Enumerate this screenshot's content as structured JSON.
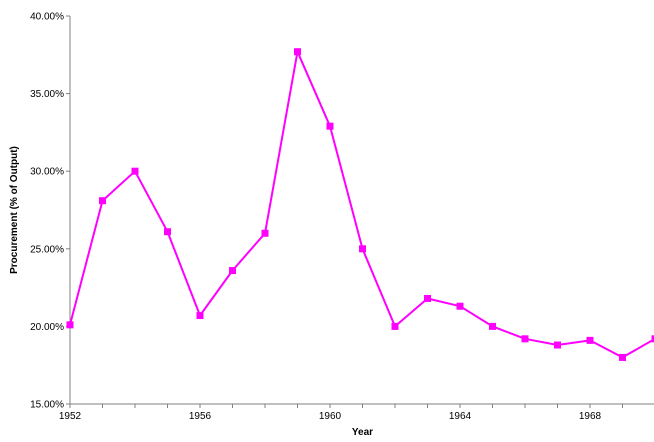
{
  "chart_data": {
    "type": "line",
    "xlabel": "Year",
    "ylabel": "Procurement (% of Output)",
    "xlim": [
      1952,
      1970
    ],
    "ylim": [
      15,
      40
    ],
    "x_ticks": [
      1952,
      1956,
      1960,
      1964,
      1968
    ],
    "x_tick_labels": [
      "1952",
      "1956",
      "1960",
      "1964",
      "1968"
    ],
    "y_ticks": [
      15,
      20,
      25,
      30,
      35,
      40
    ],
    "y_tick_labels": [
      "15.00%",
      "20.00%",
      "25.00%",
      "30.00%",
      "35.00%",
      "40.00%"
    ],
    "grid": false,
    "legend": "none",
    "colors": {
      "series": "#ff00ff",
      "axis": "#808080"
    },
    "series": [
      {
        "x": [
          1952,
          1953,
          1954,
          1955,
          1956,
          1957,
          1958,
          1959,
          1960,
          1961,
          1962,
          1963,
          1964,
          1965,
          1966,
          1967,
          1968,
          1969,
          1970
        ],
        "values": [
          20.1,
          28.1,
          30.0,
          26.1,
          20.7,
          23.6,
          26.0,
          37.7,
          32.9,
          25.0,
          20.0,
          21.8,
          21.3,
          20.0,
          19.2,
          18.8,
          19.1,
          18.0,
          19.2
        ]
      }
    ]
  }
}
